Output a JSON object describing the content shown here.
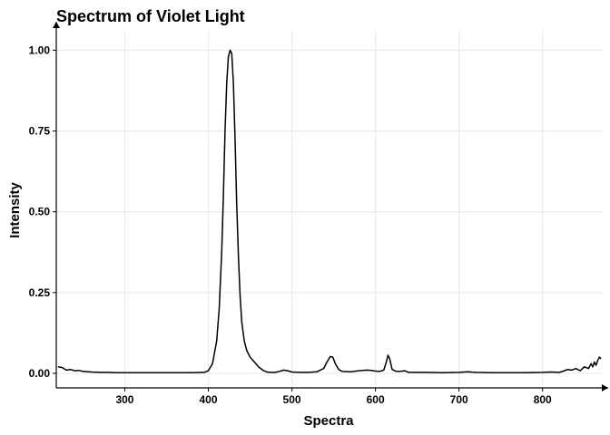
{
  "chart_data": {
    "type": "line",
    "title": "Spectrum of Violet Light",
    "xlabel": "Spectra",
    "ylabel": "Intensity",
    "xlim": [
      218,
      872
    ],
    "ylim": [
      -0.045,
      1.06
    ],
    "x_ticks": [
      300,
      400,
      500,
      600,
      700,
      800
    ],
    "x_tick_labels": [
      "300",
      "400",
      "500",
      "600",
      "700",
      "800"
    ],
    "y_ticks": [
      0.0,
      0.25,
      0.5,
      0.75,
      1.0
    ],
    "y_tick_labels": [
      "0.00",
      "0.25",
      "0.50",
      "0.75",
      "1.00"
    ],
    "grid": true,
    "line_color": "#000000",
    "series": [
      {
        "x": [
          220,
          225,
          230,
          235,
          240,
          245,
          250,
          260,
          270,
          280,
          290,
          300,
          320,
          340,
          360,
          380,
          395,
          400,
          405,
          410,
          413,
          416,
          418,
          420,
          422,
          424,
          426,
          428,
          430,
          432,
          434,
          436,
          438,
          440,
          443,
          446,
          450,
          455,
          460,
          465,
          470,
          475,
          480,
          485,
          490,
          495,
          500,
          510,
          520,
          530,
          538,
          542,
          546,
          549,
          552,
          556,
          560,
          570,
          580,
          590,
          595,
          600,
          605,
          610,
          613,
          615,
          617,
          620,
          625,
          630,
          635,
          640,
          650,
          660,
          680,
          700,
          710,
          720,
          740,
          760,
          780,
          800,
          810,
          820,
          825,
          830,
          835,
          840,
          845,
          850,
          855,
          858,
          860,
          862,
          864,
          866,
          868,
          870
        ],
        "y": [
          0.02,
          0.018,
          0.01,
          0.012,
          0.008,
          0.009,
          0.006,
          0.004,
          0.003,
          0.003,
          0.002,
          0.002,
          0.002,
          0.002,
          0.002,
          0.002,
          0.003,
          0.008,
          0.03,
          0.1,
          0.2,
          0.38,
          0.55,
          0.75,
          0.9,
          0.98,
          1.0,
          0.99,
          0.9,
          0.72,
          0.52,
          0.36,
          0.24,
          0.16,
          0.1,
          0.07,
          0.05,
          0.035,
          0.02,
          0.01,
          0.004,
          0.003,
          0.003,
          0.006,
          0.01,
          0.008,
          0.004,
          0.003,
          0.003,
          0.005,
          0.015,
          0.035,
          0.052,
          0.05,
          0.03,
          0.012,
          0.006,
          0.005,
          0.008,
          0.01,
          0.009,
          0.007,
          0.006,
          0.01,
          0.035,
          0.056,
          0.045,
          0.012,
          0.006,
          0.006,
          0.008,
          0.003,
          0.003,
          0.003,
          0.002,
          0.003,
          0.005,
          0.003,
          0.002,
          0.002,
          0.002,
          0.003,
          0.004,
          0.003,
          0.007,
          0.012,
          0.01,
          0.015,
          0.008,
          0.02,
          0.015,
          0.03,
          0.02,
          0.035,
          0.025,
          0.04,
          0.05,
          0.045
        ]
      }
    ]
  }
}
